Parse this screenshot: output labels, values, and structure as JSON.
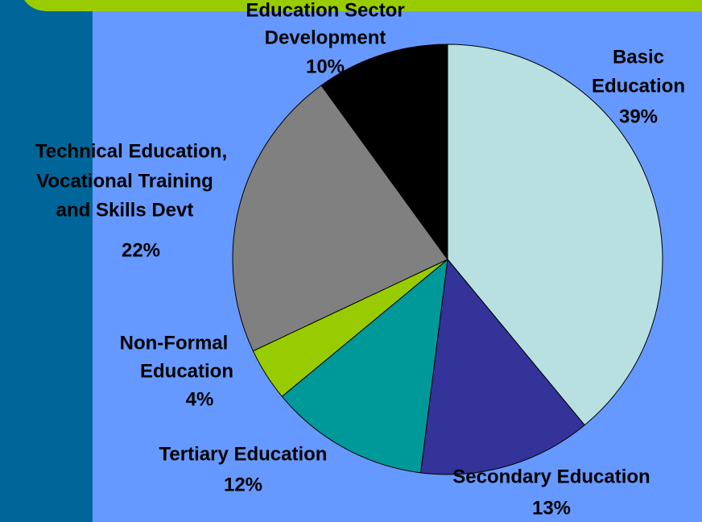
{
  "chart_data": {
    "type": "pie",
    "categories": [
      [
        "Basic",
        "Education"
      ],
      [
        "Secondary Education"
      ],
      [
        "Tertiary Education"
      ],
      [
        "Non-Formal",
        "Education"
      ],
      [
        "Technical Education,",
        "Vocational Training",
        "and Skills Devt"
      ],
      [
        "Education Sector",
        "Development"
      ]
    ],
    "values": [
      39,
      13,
      12,
      4,
      22,
      10
    ],
    "value_labels": [
      "39%",
      "13%",
      "12%",
      "4%",
      "22%",
      "10%"
    ],
    "colors": [
      "#b8e0e0",
      "#333399",
      "#009999",
      "#99cc00",
      "#808080",
      "#000000"
    ]
  }
}
